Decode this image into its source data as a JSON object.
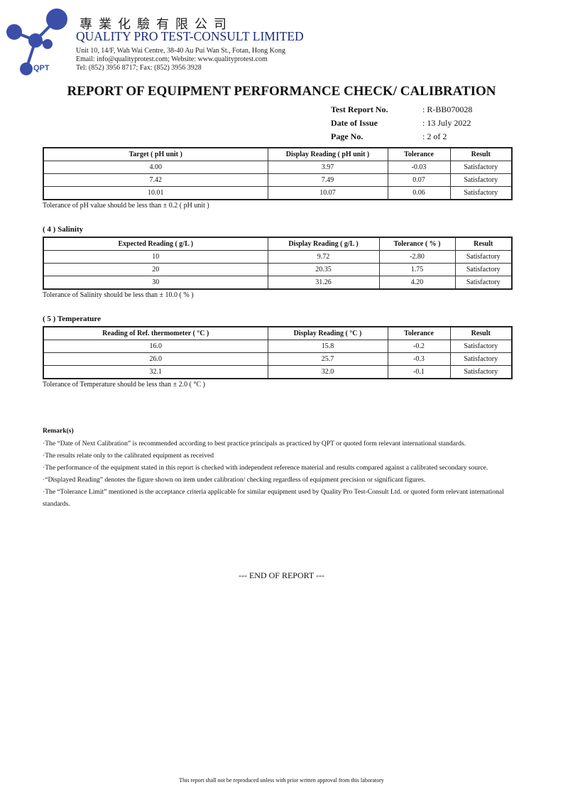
{
  "company": {
    "chinese_name": "專業化驗有限公司",
    "name": "QUALITY PRO TEST-CONSULT LIMITED",
    "address": "Unit 10, 14/F, Wah Wai Centre, 38-40 Au Pui Wan St., Fotan, Hong Kong",
    "contact": "Email: info@qualityprotest.com; Website: www.qualityprotest.com",
    "phone": "Tel: (852) 3956 8717; Fax: (852) 3956 3928",
    "logo_text": "QPT",
    "brand_color": "#3b4fa8"
  },
  "title": "REPORT OF EQUIPMENT PERFORMANCE CHECK/ CALIBRATION",
  "meta": [
    {
      "label": "Test Report No.",
      "value": ": R-BB070028"
    },
    {
      "label": "Date of Issue",
      "value": ": 13 July 2022"
    },
    {
      "label": "Page No.",
      "value": ": 2 of 2"
    }
  ],
  "ph": {
    "headers": [
      "Target ( pH unit )",
      "Display Reading ( pH unit )",
      "Tolerance",
      "Result"
    ],
    "rows": [
      [
        "4.00",
        "3.97",
        "-0.03",
        "Satisfactory"
      ],
      [
        "7.42",
        "7.49",
        "0.07",
        "Satisfactory"
      ],
      [
        "10.01",
        "10.07",
        "0.06",
        "Satisfactory"
      ]
    ],
    "note": "Tolerance of pH value should be less than ± 0.2 ( pH unit )"
  },
  "salinity": {
    "heading": "( 4 )  Salinity",
    "headers": [
      "Expected Reading ( g/L )",
      "Display Reading ( g/L )",
      "Tolerance ( % )",
      "Result"
    ],
    "rows": [
      [
        "10",
        "9.72",
        "-2.80",
        "Satisfactory"
      ],
      [
        "20",
        "20.35",
        "1.75",
        "Satisfactory"
      ],
      [
        "30",
        "31.26",
        "4.20",
        "Satisfactory"
      ]
    ],
    "note": "Tolerance of Salinity should be less than ± 10.0 ( % )"
  },
  "temperature": {
    "heading": "( 5 )  Temperature",
    "headers": [
      "Reading of Ref. thermometer ( °C )",
      "Display Reading ( °C )",
      "Tolerance",
      "Result"
    ],
    "rows": [
      [
        "16.0",
        "15.8",
        "-0.2",
        "Satisfactory"
      ],
      [
        "26.0",
        "25.7",
        "-0.3",
        "Satisfactory"
      ],
      [
        "32.1",
        "32.0",
        "-0.1",
        "Satisfactory"
      ]
    ],
    "note": "Tolerance of Temperature should be less than ± 2.0 ( °C )"
  },
  "remarks": {
    "heading": "Remark(s)",
    "items": [
      "·The “Date of Next Calibration” is recommended according to best practice principals as practiced by QPT or quoted form relevant international standards.",
      "·The results relate only to the calibrated equipment as received",
      "·The performance of the equipment stated in this report is checked with independent reference material and results compared against a calibrated secondary source.",
      "·“Displayed Reading” denotes the figure shown on item under calibration/ checking regardless of equipment precision or significant figures.",
      "·The “Tolerance Limit” mentioned is the acceptance criteria applicable for similar equipment used by Quality Pro Test-Consult Ltd. or quoted form relevant international standards."
    ]
  },
  "end": "--- END OF REPORT ---",
  "footer": "This report shall not be reproduced unless with prior written approval from this laboratory"
}
